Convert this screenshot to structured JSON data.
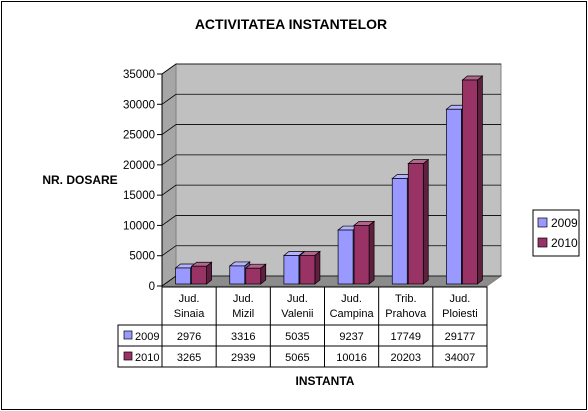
{
  "chart_data": {
    "type": "bar",
    "title": "ACTIVITATEA INSTANTELOR",
    "xlabel": "INSTANTA",
    "ylabel": "NR. DOSARE",
    "categories": [
      [
        "Jud.",
        "Sinaia"
      ],
      [
        "Jud.",
        "Mizil"
      ],
      [
        "Jud.",
        "Valenii"
      ],
      [
        "Jud.",
        "Campina"
      ],
      [
        "Trib.",
        "Prahova"
      ],
      [
        "Jud.",
        "Ploiesti"
      ]
    ],
    "series": [
      {
        "name": "2009",
        "color": "#9999ff",
        "values": [
          2976,
          3316,
          5035,
          9237,
          17749,
          29177
        ]
      },
      {
        "name": "2010",
        "color": "#993366",
        "values": [
          3265,
          2939,
          5065,
          10016,
          20203,
          34007
        ]
      }
    ],
    "ylim": [
      0,
      35000
    ],
    "yticks": [
      0,
      5000,
      10000,
      15000,
      20000,
      25000,
      30000,
      35000
    ],
    "grid": true,
    "legend": "right",
    "data_table": true,
    "wall_color": "#c0c0c0"
  }
}
